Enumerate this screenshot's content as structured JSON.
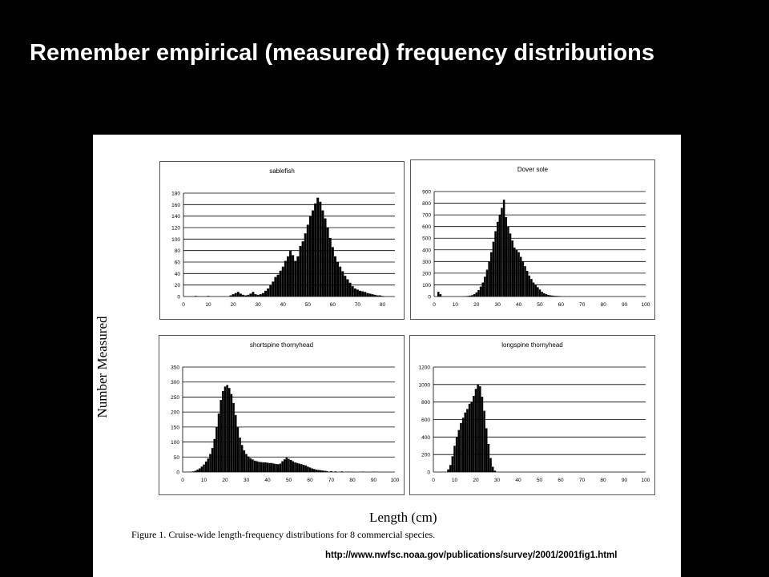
{
  "slide": {
    "title": "Remember empirical (measured) frequency distributions"
  },
  "figure": {
    "ylabel": "Number Measured",
    "xlabel": "Length (cm)",
    "caption": "Figure 1. Cruise-wide length-frequency distributions for 8 commercial species.",
    "source_url": "http://www.nwfsc.noaa.gov/publications/survey/2001/2001fig1.html"
  },
  "chart_data": [
    {
      "type": "bar",
      "title": "sablefish",
      "xlim": [
        0,
        85
      ],
      "xticks": [
        0,
        10,
        20,
        30,
        40,
        50,
        60,
        70,
        80
      ],
      "ylim": [
        0,
        180
      ],
      "yticks": [
        0,
        20,
        40,
        60,
        80,
        100,
        120,
        140,
        160,
        180
      ],
      "grid": true,
      "x": [
        5,
        10,
        19,
        20,
        21,
        22,
        23,
        24,
        25,
        26,
        27,
        28,
        29,
        30,
        31,
        32,
        33,
        34,
        35,
        36,
        37,
        38,
        39,
        40,
        41,
        42,
        43,
        44,
        45,
        46,
        47,
        48,
        49,
        50,
        51,
        52,
        53,
        54,
        55,
        56,
        57,
        58,
        59,
        60,
        61,
        62,
        63,
        64,
        65,
        66,
        67,
        68,
        69,
        70,
        71,
        72,
        73,
        74,
        75,
        76,
        77,
        78,
        79,
        80
      ],
      "values": [
        1,
        1,
        2,
        4,
        6,
        8,
        5,
        3,
        2,
        3,
        5,
        8,
        4,
        3,
        4,
        6,
        10,
        14,
        20,
        26,
        34,
        38,
        45,
        52,
        62,
        70,
        80,
        72,
        62,
        70,
        88,
        96,
        110,
        125,
        140,
        150,
        162,
        172,
        165,
        150,
        136,
        120,
        102,
        86,
        70,
        60,
        52,
        44,
        36,
        30,
        24,
        18,
        14,
        12,
        10,
        9,
        8,
        6,
        5,
        4,
        3,
        2,
        2,
        1
      ]
    },
    {
      "type": "bar",
      "title": "Dover sole",
      "xlim": [
        0,
        100
      ],
      "xticks": [
        0,
        10,
        20,
        30,
        40,
        50,
        60,
        70,
        80,
        90,
        100
      ],
      "ylim": [
        0,
        900
      ],
      "yticks": [
        0,
        100,
        200,
        300,
        400,
        500,
        600,
        700,
        800,
        900
      ],
      "grid": true,
      "x": [
        2,
        3,
        14,
        15,
        16,
        17,
        18,
        19,
        20,
        21,
        22,
        23,
        24,
        25,
        26,
        27,
        28,
        29,
        30,
        31,
        32,
        33,
        34,
        35,
        36,
        37,
        38,
        39,
        40,
        41,
        42,
        43,
        44,
        45,
        46,
        47,
        48,
        49,
        50,
        51,
        52,
        53,
        54,
        55,
        56,
        57,
        58,
        59,
        60,
        62,
        64
      ],
      "values": [
        40,
        20,
        2,
        3,
        5,
        8,
        12,
        20,
        35,
        55,
        85,
        120,
        170,
        230,
        300,
        380,
        470,
        560,
        640,
        700,
        760,
        830,
        680,
        600,
        540,
        480,
        420,
        400,
        380,
        340,
        300,
        260,
        220,
        180,
        150,
        120,
        100,
        80,
        60,
        40,
        28,
        20,
        14,
        10,
        8,
        6,
        5,
        4,
        3,
        2,
        1
      ]
    },
    {
      "type": "bar",
      "title": "shortspine thornyhead",
      "xlim": [
        0,
        100
      ],
      "xticks": [
        0,
        10,
        20,
        30,
        40,
        50,
        60,
        70,
        80,
        90,
        100
      ],
      "ylim": [
        0,
        350
      ],
      "yticks": [
        0,
        50,
        100,
        150,
        200,
        250,
        300,
        350
      ],
      "grid": true,
      "x": [
        4,
        5,
        6,
        7,
        8,
        9,
        10,
        11,
        12,
        13,
        14,
        15,
        16,
        17,
        18,
        19,
        20,
        21,
        22,
        23,
        24,
        25,
        26,
        27,
        28,
        29,
        30,
        31,
        32,
        33,
        34,
        35,
        36,
        37,
        38,
        39,
        40,
        41,
        42,
        43,
        44,
        45,
        46,
        47,
        48,
        49,
        50,
        51,
        52,
        53,
        54,
        55,
        56,
        57,
        58,
        59,
        60,
        61,
        62,
        63,
        64,
        65,
        66,
        67,
        68,
        70,
        72,
        75,
        78,
        80,
        85,
        90
      ],
      "values": [
        1,
        2,
        4,
        8,
        12,
        18,
        25,
        35,
        45,
        60,
        80,
        110,
        150,
        195,
        240,
        270,
        285,
        290,
        280,
        260,
        230,
        190,
        150,
        115,
        90,
        72,
        60,
        52,
        46,
        42,
        38,
        36,
        34,
        33,
        32,
        32,
        31,
        30,
        30,
        28,
        27,
        26,
        28,
        36,
        42,
        48,
        44,
        40,
        36,
        32,
        30,
        28,
        26,
        24,
        22,
        18,
        15,
        12,
        10,
        8,
        7,
        6,
        5,
        4,
        3,
        3,
        2,
        2,
        1,
        1,
        1,
        1
      ]
    },
    {
      "type": "bar",
      "title": "longspine thornyhead",
      "xlim": [
        0,
        100
      ],
      "xticks": [
        0,
        10,
        20,
        30,
        40,
        50,
        60,
        70,
        80,
        90,
        100
      ],
      "ylim": [
        0,
        1200
      ],
      "yticks": [
        0,
        200,
        400,
        600,
        800,
        1000,
        1200
      ],
      "grid": true,
      "x": [
        7,
        8,
        9,
        10,
        11,
        12,
        13,
        14,
        15,
        16,
        17,
        18,
        19,
        20,
        21,
        22,
        23,
        24,
        25,
        26,
        27,
        28,
        29
      ],
      "values": [
        30,
        80,
        180,
        300,
        400,
        480,
        560,
        620,
        680,
        720,
        780,
        800,
        870,
        950,
        1000,
        980,
        860,
        700,
        500,
        320,
        160,
        60,
        15
      ]
    }
  ]
}
